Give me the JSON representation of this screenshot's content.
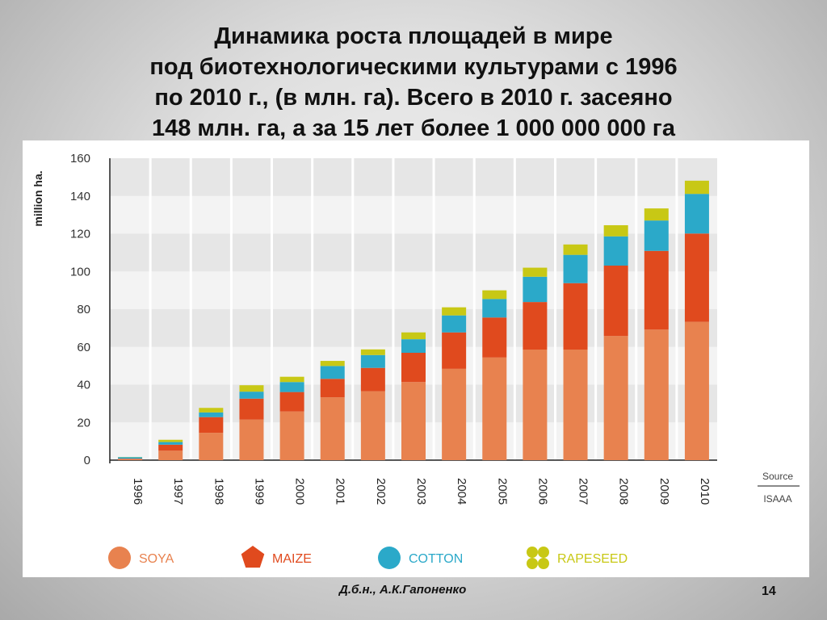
{
  "slide": {
    "title_lines": [
      "Динамика роста площадей в мире",
      "под биотехнологическими культурами с 1996",
      "по 2010 г., (в млн. га). Всего в 2010 г. засеяно",
      "148 млн. га, а за 15 лет более 1 000 000 000 га"
    ],
    "author": "Д.б.н., А.К.Гапоненко",
    "page_number": "14"
  },
  "chart_data": {
    "type": "bar",
    "stacked": true,
    "categories": [
      "1996",
      "1997",
      "1998",
      "1999",
      "2000",
      "2001",
      "2002",
      "2003",
      "2004",
      "2005",
      "2006",
      "2007",
      "2008",
      "2009",
      "2010"
    ],
    "ylabel": "million ha.",
    "ylim": [
      0,
      160
    ],
    "yticks": [
      0,
      20,
      40,
      60,
      80,
      100,
      120,
      140,
      160
    ],
    "grid": "alternating horizontal bands",
    "legend_position": "bottom",
    "source_label": "Source",
    "source": "ISAAA",
    "series": [
      {
        "name": "SOYA",
        "color": "#E8824F",
        "legend_shape": "circle",
        "values": [
          0.5,
          5,
          14.5,
          21.5,
          25.8,
          33.3,
          36.5,
          41.4,
          48.4,
          54.4,
          58.6,
          58.6,
          65.8,
          69.2,
          73.3
        ]
      },
      {
        "name": "MAIZE",
        "color": "#E04A1E",
        "legend_shape": "pentagon",
        "values": [
          0.3,
          3.2,
          8.3,
          11.1,
          10.3,
          9.8,
          12.4,
          15.5,
          19.3,
          21.2,
          25.2,
          35.2,
          37.3,
          41.7,
          46.8
        ]
      },
      {
        "name": "COTTON",
        "color": "#2BA9C9",
        "legend_shape": "circle",
        "values": [
          0.8,
          1.4,
          2.5,
          3.7,
          5.3,
          6.8,
          6.8,
          7.2,
          9.0,
          9.8,
          13.4,
          15.0,
          15.5,
          16.1,
          21.0
        ]
      },
      {
        "name": "RAPESEED",
        "color": "#C8C815",
        "legend_shape": "clover",
        "values": [
          0.1,
          1.2,
          2.4,
          3.4,
          2.8,
          2.7,
          3.0,
          3.6,
          4.3,
          4.6,
          4.8,
          5.5,
          5.9,
          6.4,
          7.0
        ]
      }
    ]
  }
}
